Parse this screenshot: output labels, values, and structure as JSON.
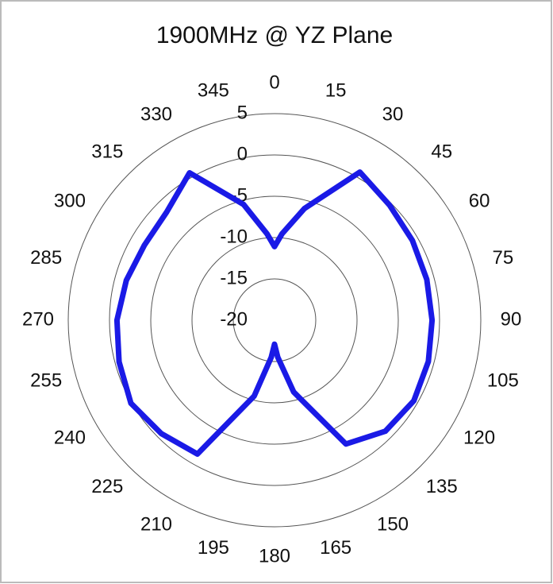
{
  "chart_data": {
    "type": "polar",
    "title": "1900MHz @ YZ Plane",
    "theta": [
      0,
      5,
      15,
      30,
      45,
      60,
      75,
      90,
      105,
      120,
      135,
      150,
      165,
      175,
      180,
      185,
      195,
      210,
      225,
      240,
      255,
      270,
      285,
      300,
      315,
      330,
      345,
      355
    ],
    "series": [
      {
        "color": "#1a1ae6",
        "values": [
          -11.1,
          -9.5,
          -6,
          0.7,
          -0.3,
          -0.7,
          -0.9,
          -0.9,
          -0.7,
          -0.5,
          -1.0,
          -2.7,
          -11,
          -15.5,
          -17.1,
          -15.5,
          -10.5,
          -1.3,
          -0.6,
          0.1,
          -0.5,
          -0.9,
          -1.4,
          -1.8,
          -1.5,
          0.6,
          -5.5,
          -9.5
        ]
      }
    ],
    "rlim": [
      -20,
      5
    ],
    "rticks": [
      -20,
      -15,
      -10,
      -5,
      0,
      5
    ],
    "thetaticks": [
      0,
      15,
      30,
      45,
      60,
      75,
      90,
      105,
      120,
      135,
      150,
      165,
      180,
      195,
      210,
      225,
      240,
      255,
      270,
      285,
      300,
      315,
      330,
      345
    ],
    "direction": "clockwise",
    "zero": "top"
  }
}
